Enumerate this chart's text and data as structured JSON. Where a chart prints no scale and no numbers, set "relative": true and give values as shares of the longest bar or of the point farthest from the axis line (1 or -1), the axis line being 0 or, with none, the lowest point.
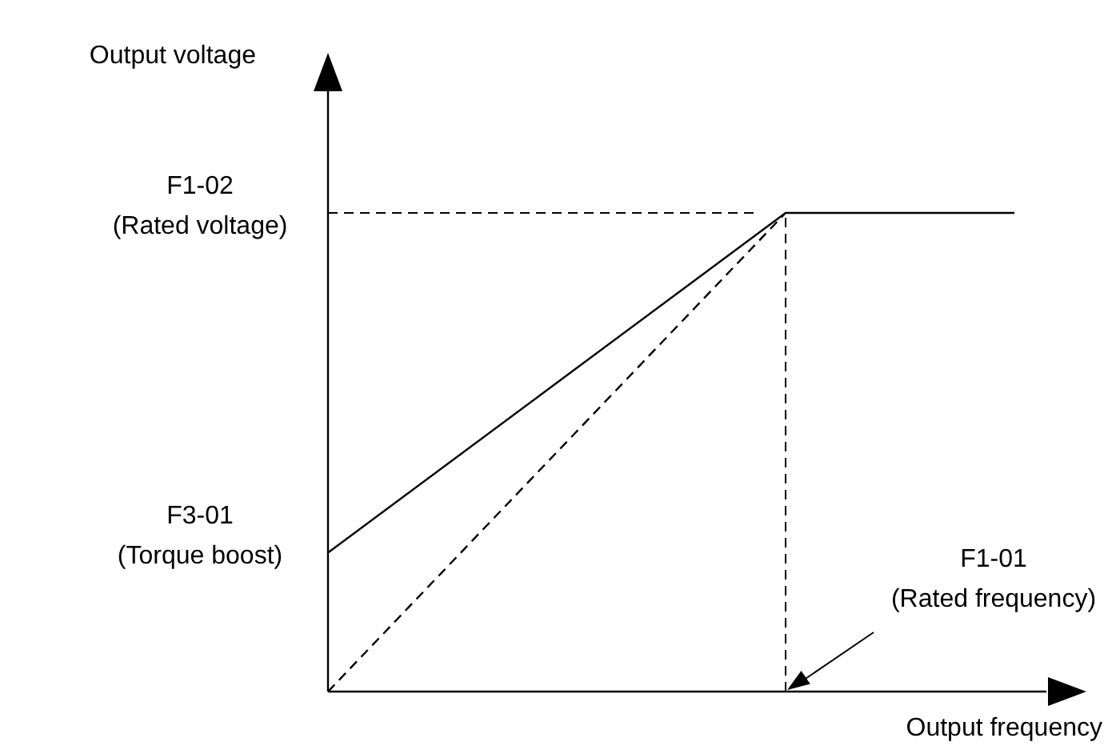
{
  "chart_data": {
    "type": "line",
    "relative": true,
    "xlabel": "Output frequency",
    "categories": [
      null,
      null,
      null,
      null
    ],
    "series": [
      {
        "color": "#000000",
        "line_style": "solid",
        "values": [
          0.29,
          0.645,
          1,
          1
        ]
      },
      {
        "color": "#000000",
        "line_style": "dashed",
        "values": [
          0,
          0.5,
          1,
          null
        ]
      }
    ],
    "ref_lines": [
      {
        "axis": "y",
        "value": 1,
        "label": "F1-02\n(Rated voltage)",
        "line_style": "dashed"
      }
    ],
    "annotations": [
      "F3-01\n(Torque boost)",
      "F1-01\n(Rated frequency)",
      "Output voltage"
    ],
    "marker": "none",
    "legend": false
  }
}
